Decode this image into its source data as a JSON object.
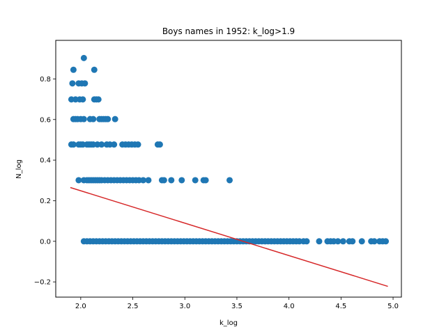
{
  "chart_data": {
    "type": "scatter",
    "title": "Boys names in 1952: k_log>1.9",
    "xlabel": "k_log",
    "ylabel": "N_log",
    "xlim": [
      1.76,
      5.08
    ],
    "ylim": [
      -0.275,
      0.99
    ],
    "xticks": [
      "2.0",
      "2.5",
      "3.0",
      "3.5",
      "4.0",
      "4.5",
      "5.0"
    ],
    "xtick_values": [
      2.0,
      2.5,
      3.0,
      3.5,
      4.0,
      4.5,
      5.0
    ],
    "yticks": [
      "−0.2",
      "0.0",
      "0.2",
      "0.4",
      "0.6",
      "0.8"
    ],
    "ytick_values": [
      -0.2,
      0.0,
      0.2,
      0.4,
      0.6,
      0.8
    ],
    "grid": false,
    "point_color": "#1f77b4",
    "line_color": "#d62728",
    "series": [
      {
        "points": [
          [
            1.91,
            0.477
          ],
          [
            1.93,
            0.477
          ],
          [
            1.98,
            0.477
          ],
          [
            2.0,
            0.477
          ],
          [
            2.02,
            0.477
          ],
          [
            2.06,
            0.477
          ],
          [
            2.08,
            0.477
          ],
          [
            2.1,
            0.477
          ],
          [
            2.12,
            0.477
          ],
          [
            2.16,
            0.477
          ],
          [
            2.2,
            0.477
          ],
          [
            2.25,
            0.477
          ],
          [
            2.28,
            0.477
          ],
          [
            2.32,
            0.477
          ],
          [
            2.4,
            0.477
          ],
          [
            2.43,
            0.477
          ],
          [
            2.46,
            0.477
          ],
          [
            2.49,
            0.477
          ],
          [
            2.52,
            0.477
          ],
          [
            2.55,
            0.477
          ],
          [
            2.74,
            0.477
          ],
          [
            2.76,
            0.477
          ],
          [
            1.91,
            0.699
          ],
          [
            1.95,
            0.699
          ],
          [
            1.99,
            0.699
          ],
          [
            2.02,
            0.699
          ],
          [
            2.13,
            0.699
          ],
          [
            2.15,
            0.699
          ],
          [
            2.17,
            0.699
          ],
          [
            1.92,
            0.778
          ],
          [
            1.98,
            0.778
          ],
          [
            2.01,
            0.778
          ],
          [
            2.04,
            0.778
          ],
          [
            1.93,
            0.845
          ],
          [
            2.13,
            0.845
          ],
          [
            2.03,
            0.903
          ],
          [
            1.93,
            0.602
          ],
          [
            1.95,
            0.602
          ],
          [
            1.97,
            0.602
          ],
          [
            2.0,
            0.602
          ],
          [
            2.03,
            0.602
          ],
          [
            2.09,
            0.602
          ],
          [
            2.12,
            0.602
          ],
          [
            2.18,
            0.602
          ],
          [
            2.2,
            0.602
          ],
          [
            2.22,
            0.602
          ],
          [
            2.24,
            0.602
          ],
          [
            2.26,
            0.602
          ],
          [
            2.33,
            0.602
          ],
          [
            1.98,
            0.301
          ],
          [
            2.03,
            0.301
          ],
          [
            2.06,
            0.301
          ],
          [
            2.08,
            0.301
          ],
          [
            2.1,
            0.301
          ],
          [
            2.12,
            0.301
          ],
          [
            2.14,
            0.301
          ],
          [
            2.16,
            0.301
          ],
          [
            2.18,
            0.301
          ],
          [
            2.2,
            0.301
          ],
          [
            2.23,
            0.301
          ],
          [
            2.26,
            0.301
          ],
          [
            2.29,
            0.301
          ],
          [
            2.32,
            0.301
          ],
          [
            2.35,
            0.301
          ],
          [
            2.38,
            0.301
          ],
          [
            2.41,
            0.301
          ],
          [
            2.44,
            0.301
          ],
          [
            2.47,
            0.301
          ],
          [
            2.5,
            0.301
          ],
          [
            2.53,
            0.301
          ],
          [
            2.56,
            0.301
          ],
          [
            2.6,
            0.301
          ],
          [
            2.65,
            0.301
          ],
          [
            2.78,
            0.301
          ],
          [
            2.8,
            0.301
          ],
          [
            2.87,
            0.301
          ],
          [
            2.97,
            0.301
          ],
          [
            3.1,
            0.301
          ],
          [
            3.18,
            0.301
          ],
          [
            3.2,
            0.301
          ],
          [
            3.43,
            0.301
          ],
          [
            2.03,
            0.0
          ],
          [
            2.06,
            0.0
          ],
          [
            2.09,
            0.0
          ],
          [
            2.12,
            0.0
          ],
          [
            2.15,
            0.0
          ],
          [
            2.18,
            0.0
          ],
          [
            2.21,
            0.0
          ],
          [
            2.24,
            0.0
          ],
          [
            2.27,
            0.0
          ],
          [
            2.3,
            0.0
          ],
          [
            2.33,
            0.0
          ],
          [
            2.36,
            0.0
          ],
          [
            2.39,
            0.0
          ],
          [
            2.42,
            0.0
          ],
          [
            2.45,
            0.0
          ],
          [
            2.48,
            0.0
          ],
          [
            2.51,
            0.0
          ],
          [
            2.54,
            0.0
          ],
          [
            2.57,
            0.0
          ],
          [
            2.6,
            0.0
          ],
          [
            2.63,
            0.0
          ],
          [
            2.66,
            0.0
          ],
          [
            2.69,
            0.0
          ],
          [
            2.72,
            0.0
          ],
          [
            2.75,
            0.0
          ],
          [
            2.78,
            0.0
          ],
          [
            2.81,
            0.0
          ],
          [
            2.84,
            0.0
          ],
          [
            2.87,
            0.0
          ],
          [
            2.9,
            0.0
          ],
          [
            2.93,
            0.0
          ],
          [
            2.96,
            0.0
          ],
          [
            2.99,
            0.0
          ],
          [
            3.02,
            0.0
          ],
          [
            3.05,
            0.0
          ],
          [
            3.08,
            0.0
          ],
          [
            3.11,
            0.0
          ],
          [
            3.14,
            0.0
          ],
          [
            3.17,
            0.0
          ],
          [
            3.2,
            0.0
          ],
          [
            3.23,
            0.0
          ],
          [
            3.26,
            0.0
          ],
          [
            3.29,
            0.0
          ],
          [
            3.32,
            0.0
          ],
          [
            3.35,
            0.0
          ],
          [
            3.38,
            0.0
          ],
          [
            3.41,
            0.0
          ],
          [
            3.44,
            0.0
          ],
          [
            3.47,
            0.0
          ],
          [
            3.5,
            0.0
          ],
          [
            3.53,
            0.0
          ],
          [
            3.56,
            0.0
          ],
          [
            3.59,
            0.0
          ],
          [
            3.62,
            0.0
          ],
          [
            3.65,
            0.0
          ],
          [
            3.68,
            0.0
          ],
          [
            3.71,
            0.0
          ],
          [
            3.74,
            0.0
          ],
          [
            3.77,
            0.0
          ],
          [
            3.8,
            0.0
          ],
          [
            3.83,
            0.0
          ],
          [
            3.86,
            0.0
          ],
          [
            3.89,
            0.0
          ],
          [
            3.92,
            0.0
          ],
          [
            3.95,
            0.0
          ],
          [
            3.98,
            0.0
          ],
          [
            4.01,
            0.0
          ],
          [
            4.04,
            0.0
          ],
          [
            4.07,
            0.0
          ],
          [
            4.1,
            0.0
          ],
          [
            4.14,
            0.0
          ],
          [
            4.17,
            0.0
          ],
          [
            4.29,
            0.0
          ],
          [
            4.37,
            0.0
          ],
          [
            4.4,
            0.0
          ],
          [
            4.43,
            0.0
          ],
          [
            4.47,
            0.0
          ],
          [
            4.52,
            0.0
          ],
          [
            4.58,
            0.0
          ],
          [
            4.61,
            0.0
          ],
          [
            4.7,
            0.0
          ],
          [
            4.79,
            0.0
          ],
          [
            4.82,
            0.0
          ],
          [
            4.87,
            0.0
          ],
          [
            4.9,
            0.0
          ],
          [
            4.93,
            0.0
          ]
        ]
      }
    ],
    "fit_line": {
      "x": [
        1.9,
        4.95
      ],
      "y": [
        0.265,
        -0.222
      ]
    }
  }
}
